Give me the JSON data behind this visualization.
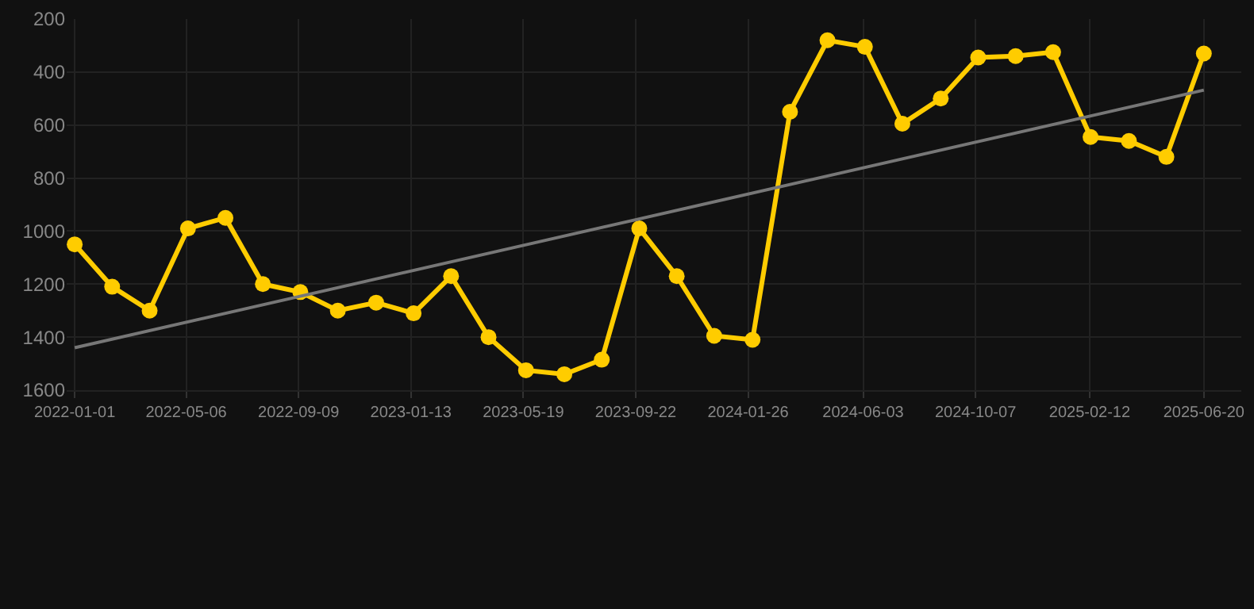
{
  "chart_data": {
    "type": "line",
    "x": [
      "2022-01-01",
      "2022-02-12",
      "2022-03-26",
      "2022-05-08",
      "2022-06-19",
      "2022-07-31",
      "2022-09-11",
      "2022-10-23",
      "2022-12-05",
      "2023-01-16",
      "2023-02-27",
      "2023-04-10",
      "2023-05-22",
      "2023-07-04",
      "2023-08-15",
      "2023-09-26",
      "2023-11-07",
      "2023-12-19",
      "2024-01-31",
      "2024-03-13",
      "2024-04-24",
      "2024-06-05",
      "2024-07-17",
      "2024-08-29",
      "2024-10-10",
      "2024-11-21",
      "2025-01-02",
      "2025-02-13",
      "2025-03-28",
      "2025-05-09",
      "2025-06-20"
    ],
    "series": [
      {
        "color": "#ffcc00",
        "marker": "circle",
        "values": [
          1050,
          1210,
          1300,
          990,
          950,
          1200,
          1230,
          1300,
          1270,
          1310,
          1170,
          1400,
          1525,
          1540,
          1485,
          990,
          1170,
          1395,
          1410,
          550,
          280,
          305,
          595,
          500,
          345,
          340,
          325,
          645,
          660,
          720,
          330
        ]
      },
      {
        "color": "#777777",
        "marker": "none",
        "x": [
          "2022-01-01",
          "2025-06-20"
        ],
        "values": [
          1440,
          468
        ]
      }
    ],
    "xlim": [
      "2021-12-23",
      "2025-08-01"
    ],
    "xticks": [
      "2022-01-01",
      "2022-05-06",
      "2022-09-09",
      "2023-01-13",
      "2023-05-19",
      "2023-09-22",
      "2024-01-26",
      "2024-06-03",
      "2024-10-07",
      "2025-02-12",
      "2025-06-20"
    ],
    "ylim": [
      1600,
      200
    ],
    "yticks": [
      200,
      400,
      600,
      800,
      1000,
      1200,
      1400,
      1600
    ],
    "grid": true,
    "line_style": "solid"
  }
}
